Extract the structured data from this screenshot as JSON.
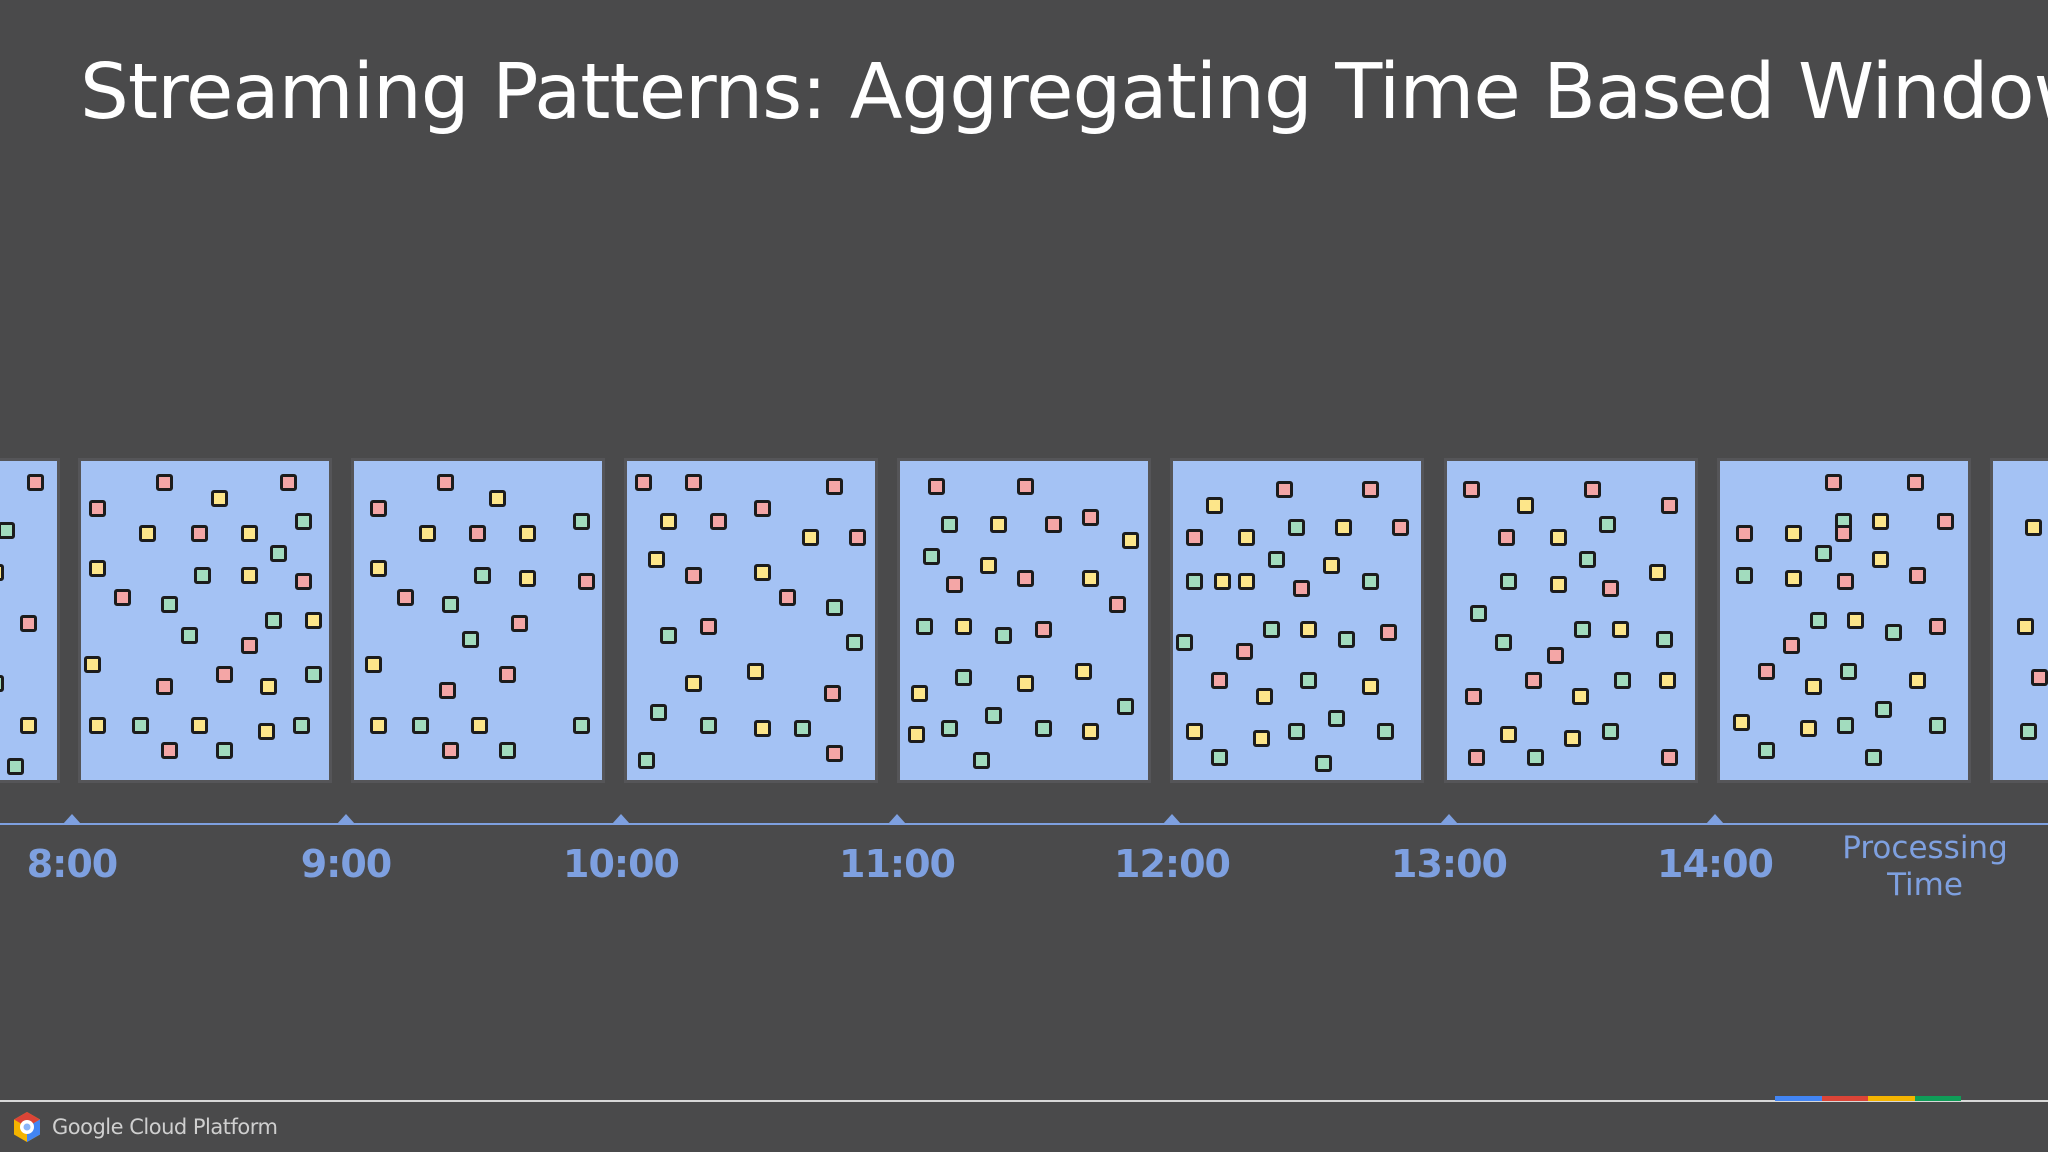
{
  "title": "Streaming Patterns: Aggregating Time Based Windows",
  "axis": {
    "label": "Processing\nTime",
    "ticks": [
      "8:00",
      "9:00",
      "10:00",
      "11:00",
      "12:00",
      "13:00",
      "14:00"
    ]
  },
  "legend_colors": {
    "window_fill": "#a4c2f4",
    "event_red": "#f4a6a6",
    "event_yellow": "#fde68a",
    "event_green": "#a2dcbe",
    "axis": "#7ea0e0"
  },
  "footer": {
    "brand_text": "Google Cloud Platform",
    "brand_colors": [
      "#4285f4",
      "#db4437",
      "#f4b400",
      "#0f9d58"
    ]
  },
  "windows": [
    {
      "id": "partial-left",
      "events": [
        {
          "c": "r",
          "u": 0.72,
          "v": 0.07
        },
        {
          "c": "g",
          "u": 0.32,
          "v": 0.22
        },
        {
          "c": "y",
          "u": 0.18,
          "v": 0.35
        },
        {
          "c": "r",
          "u": 0.62,
          "v": 0.51
        },
        {
          "c": "g",
          "u": 0.18,
          "v": 0.7
        },
        {
          "c": "y",
          "u": 0.62,
          "v": 0.83
        },
        {
          "c": "g",
          "u": 0.45,
          "v": 0.96
        }
      ]
    },
    {
      "id": "window-8",
      "events": [
        {
          "c": "r",
          "u": 0.34,
          "v": 0.07
        },
        {
          "c": "r",
          "u": 0.84,
          "v": 0.07
        },
        {
          "c": "y",
          "u": 0.56,
          "v": 0.12
        },
        {
          "c": "r",
          "u": 0.07,
          "v": 0.15
        },
        {
          "c": "g",
          "u": 0.9,
          "v": 0.19
        },
        {
          "c": "y",
          "u": 0.27,
          "v": 0.23
        },
        {
          "c": "r",
          "u": 0.48,
          "v": 0.23
        },
        {
          "c": "y",
          "u": 0.68,
          "v": 0.23
        },
        {
          "c": "g",
          "u": 0.8,
          "v": 0.29
        },
        {
          "c": "y",
          "u": 0.07,
          "v": 0.34
        },
        {
          "c": "g",
          "u": 0.49,
          "v": 0.36
        },
        {
          "c": "y",
          "u": 0.68,
          "v": 0.36
        },
        {
          "c": "r",
          "u": 0.9,
          "v": 0.38
        },
        {
          "c": "r",
          "u": 0.17,
          "v": 0.43
        },
        {
          "c": "g",
          "u": 0.36,
          "v": 0.45
        },
        {
          "c": "g",
          "u": 0.78,
          "v": 0.5
        },
        {
          "c": "y",
          "u": 0.94,
          "v": 0.5
        },
        {
          "c": "g",
          "u": 0.44,
          "v": 0.55
        },
        {
          "c": "r",
          "u": 0.68,
          "v": 0.58
        },
        {
          "c": "y",
          "u": 0.05,
          "v": 0.64
        },
        {
          "c": "g",
          "u": 0.94,
          "v": 0.67
        },
        {
          "c": "r",
          "u": 0.58,
          "v": 0.67
        },
        {
          "c": "r",
          "u": 0.34,
          "v": 0.71
        },
        {
          "c": "y",
          "u": 0.76,
          "v": 0.71
        },
        {
          "c": "y",
          "u": 0.07,
          "v": 0.83
        },
        {
          "c": "g",
          "u": 0.24,
          "v": 0.83
        },
        {
          "c": "y",
          "u": 0.48,
          "v": 0.83
        },
        {
          "c": "g",
          "u": 0.89,
          "v": 0.83
        },
        {
          "c": "y",
          "u": 0.75,
          "v": 0.85
        },
        {
          "c": "r",
          "u": 0.36,
          "v": 0.91
        },
        {
          "c": "g",
          "u": 0.58,
          "v": 0.91
        }
      ]
    },
    {
      "id": "window-9",
      "events": [
        {
          "c": "r",
          "u": 0.37,
          "v": 0.07
        },
        {
          "c": "y",
          "u": 0.58,
          "v": 0.12
        },
        {
          "c": "r",
          "u": 0.1,
          "v": 0.15
        },
        {
          "c": "g",
          "u": 0.92,
          "v": 0.19
        },
        {
          "c": "y",
          "u": 0.3,
          "v": 0.23
        },
        {
          "c": "r",
          "u": 0.5,
          "v": 0.23
        },
        {
          "c": "y",
          "u": 0.7,
          "v": 0.23
        },
        {
          "c": "y",
          "u": 0.1,
          "v": 0.34
        },
        {
          "c": "g",
          "u": 0.52,
          "v": 0.36
        },
        {
          "c": "y",
          "u": 0.7,
          "v": 0.37
        },
        {
          "c": "r",
          "u": 0.94,
          "v": 0.38
        },
        {
          "c": "r",
          "u": 0.21,
          "v": 0.43
        },
        {
          "c": "g",
          "u": 0.39,
          "v": 0.45
        },
        {
          "c": "r",
          "u": 0.67,
          "v": 0.51
        },
        {
          "c": "g",
          "u": 0.47,
          "v": 0.56
        },
        {
          "c": "y",
          "u": 0.08,
          "v": 0.64
        },
        {
          "c": "r",
          "u": 0.62,
          "v": 0.67
        },
        {
          "c": "r",
          "u": 0.38,
          "v": 0.72
        },
        {
          "c": "y",
          "u": 0.1,
          "v": 0.83
        },
        {
          "c": "g",
          "u": 0.27,
          "v": 0.83
        },
        {
          "c": "y",
          "u": 0.51,
          "v": 0.83
        },
        {
          "c": "g",
          "u": 0.92,
          "v": 0.83
        },
        {
          "c": "r",
          "u": 0.39,
          "v": 0.91
        },
        {
          "c": "g",
          "u": 0.62,
          "v": 0.91
        }
      ]
    },
    {
      "id": "window-10",
      "events": [
        {
          "c": "r",
          "u": 0.07,
          "v": 0.07
        },
        {
          "c": "r",
          "u": 0.27,
          "v": 0.07
        },
        {
          "c": "r",
          "u": 0.84,
          "v": 0.08
        },
        {
          "c": "r",
          "u": 0.55,
          "v": 0.15
        },
        {
          "c": "y",
          "u": 0.17,
          "v": 0.19
        },
        {
          "c": "r",
          "u": 0.37,
          "v": 0.19
        },
        {
          "c": "y",
          "u": 0.74,
          "v": 0.24
        },
        {
          "c": "r",
          "u": 0.93,
          "v": 0.24
        },
        {
          "c": "y",
          "u": 0.12,
          "v": 0.31
        },
        {
          "c": "r",
          "u": 0.27,
          "v": 0.36
        },
        {
          "c": "y",
          "u": 0.55,
          "v": 0.35
        },
        {
          "c": "r",
          "u": 0.65,
          "v": 0.43
        },
        {
          "c": "g",
          "u": 0.84,
          "v": 0.46
        },
        {
          "c": "r",
          "u": 0.33,
          "v": 0.52
        },
        {
          "c": "g",
          "u": 0.17,
          "v": 0.55
        },
        {
          "c": "g",
          "u": 0.92,
          "v": 0.57
        },
        {
          "c": "y",
          "u": 0.52,
          "v": 0.66
        },
        {
          "c": "y",
          "u": 0.27,
          "v": 0.7
        },
        {
          "c": "r",
          "u": 0.83,
          "v": 0.73
        },
        {
          "c": "g",
          "u": 0.13,
          "v": 0.79
        },
        {
          "c": "g",
          "u": 0.33,
          "v": 0.83
        },
        {
          "c": "y",
          "u": 0.55,
          "v": 0.84
        },
        {
          "c": "g",
          "u": 0.71,
          "v": 0.84
        },
        {
          "c": "r",
          "u": 0.84,
          "v": 0.92
        },
        {
          "c": "g",
          "u": 0.08,
          "v": 0.94
        }
      ]
    },
    {
      "id": "window-11",
      "events": [
        {
          "c": "r",
          "u": 0.15,
          "v": 0.08
        },
        {
          "c": "r",
          "u": 0.51,
          "v": 0.08
        },
        {
          "c": "r",
          "u": 0.77,
          "v": 0.18
        },
        {
          "c": "g",
          "u": 0.2,
          "v": 0.2
        },
        {
          "c": "y",
          "u": 0.4,
          "v": 0.2
        },
        {
          "c": "r",
          "u": 0.62,
          "v": 0.2
        },
        {
          "c": "y",
          "u": 0.93,
          "v": 0.25
        },
        {
          "c": "g",
          "u": 0.13,
          "v": 0.3
        },
        {
          "c": "y",
          "u": 0.36,
          "v": 0.33
        },
        {
          "c": "r",
          "u": 0.22,
          "v": 0.39
        },
        {
          "c": "r",
          "u": 0.51,
          "v": 0.37
        },
        {
          "c": "y",
          "u": 0.77,
          "v": 0.37
        },
        {
          "c": "r",
          "u": 0.88,
          "v": 0.45
        },
        {
          "c": "g",
          "u": 0.1,
          "v": 0.52
        },
        {
          "c": "y",
          "u": 0.26,
          "v": 0.52
        },
        {
          "c": "g",
          "u": 0.42,
          "v": 0.55
        },
        {
          "c": "r",
          "u": 0.58,
          "v": 0.53
        },
        {
          "c": "y",
          "u": 0.74,
          "v": 0.66
        },
        {
          "c": "g",
          "u": 0.26,
          "v": 0.68
        },
        {
          "c": "y",
          "u": 0.51,
          "v": 0.7
        },
        {
          "c": "y",
          "u": 0.08,
          "v": 0.73
        },
        {
          "c": "g",
          "u": 0.91,
          "v": 0.77
        },
        {
          "c": "g",
          "u": 0.38,
          "v": 0.8
        },
        {
          "c": "g",
          "u": 0.2,
          "v": 0.84
        },
        {
          "c": "g",
          "u": 0.58,
          "v": 0.84
        },
        {
          "c": "y",
          "u": 0.77,
          "v": 0.85
        },
        {
          "c": "y",
          "u": 0.07,
          "v": 0.86
        },
        {
          "c": "g",
          "u": 0.33,
          "v": 0.94
        }
      ]
    },
    {
      "id": "window-12",
      "events": [
        {
          "c": "r",
          "u": 0.45,
          "v": 0.09
        },
        {
          "c": "r",
          "u": 0.8,
          "v": 0.09
        },
        {
          "c": "y",
          "u": 0.17,
          "v": 0.14
        },
        {
          "c": "r",
          "u": 0.92,
          "v": 0.21
        },
        {
          "c": "g",
          "u": 0.5,
          "v": 0.21
        },
        {
          "c": "y",
          "u": 0.69,
          "v": 0.21
        },
        {
          "c": "r",
          "u": 0.09,
          "v": 0.24
        },
        {
          "c": "y",
          "u": 0.3,
          "v": 0.24
        },
        {
          "c": "g",
          "u": 0.42,
          "v": 0.31
        },
        {
          "c": "y",
          "u": 0.64,
          "v": 0.33
        },
        {
          "c": "g",
          "u": 0.09,
          "v": 0.38
        },
        {
          "c": "y",
          "u": 0.3,
          "v": 0.38
        },
        {
          "c": "r",
          "u": 0.52,
          "v": 0.4
        },
        {
          "c": "g",
          "u": 0.8,
          "v": 0.38
        },
        {
          "c": "y",
          "u": 0.2,
          "v": 0.38
        },
        {
          "c": "g",
          "u": 0.4,
          "v": 0.53
        },
        {
          "c": "y",
          "u": 0.55,
          "v": 0.53
        },
        {
          "c": "g",
          "u": 0.7,
          "v": 0.56
        },
        {
          "c": "r",
          "u": 0.87,
          "v": 0.54
        },
        {
          "c": "g",
          "u": 0.05,
          "v": 0.57
        },
        {
          "c": "r",
          "u": 0.29,
          "v": 0.6
        },
        {
          "c": "r",
          "u": 0.19,
          "v": 0.69
        },
        {
          "c": "g",
          "u": 0.55,
          "v": 0.69
        },
        {
          "c": "y",
          "u": 0.8,
          "v": 0.71
        },
        {
          "c": "y",
          "u": 0.37,
          "v": 0.74
        },
        {
          "c": "g",
          "u": 0.66,
          "v": 0.81
        },
        {
          "c": "y",
          "u": 0.09,
          "v": 0.85
        },
        {
          "c": "y",
          "u": 0.36,
          "v": 0.87
        },
        {
          "c": "g",
          "u": 0.5,
          "v": 0.85
        },
        {
          "c": "g",
          "u": 0.86,
          "v": 0.85
        },
        {
          "c": "g",
          "u": 0.19,
          "v": 0.93
        },
        {
          "c": "g",
          "u": 0.61,
          "v": 0.95
        }
      ]
    },
    {
      "id": "window-13",
      "events": [
        {
          "c": "r",
          "u": 0.1,
          "v": 0.09
        },
        {
          "c": "r",
          "u": 0.59,
          "v": 0.09
        },
        {
          "c": "y",
          "u": 0.32,
          "v": 0.14
        },
        {
          "c": "r",
          "u": 0.9,
          "v": 0.14
        },
        {
          "c": "g",
          "u": 0.65,
          "v": 0.2
        },
        {
          "c": "r",
          "u": 0.24,
          "v": 0.24
        },
        {
          "c": "y",
          "u": 0.45,
          "v": 0.24
        },
        {
          "c": "g",
          "u": 0.57,
          "v": 0.31
        },
        {
          "c": "y",
          "u": 0.85,
          "v": 0.35
        },
        {
          "c": "g",
          "u": 0.25,
          "v": 0.38
        },
        {
          "c": "y",
          "u": 0.45,
          "v": 0.39
        },
        {
          "c": "r",
          "u": 0.66,
          "v": 0.4
        },
        {
          "c": "g",
          "u": 0.13,
          "v": 0.48
        },
        {
          "c": "g",
          "u": 0.55,
          "v": 0.53
        },
        {
          "c": "y",
          "u": 0.7,
          "v": 0.53
        },
        {
          "c": "g",
          "u": 0.88,
          "v": 0.56
        },
        {
          "c": "g",
          "u": 0.23,
          "v": 0.57
        },
        {
          "c": "r",
          "u": 0.44,
          "v": 0.61
        },
        {
          "c": "r",
          "u": 0.35,
          "v": 0.69
        },
        {
          "c": "g",
          "u": 0.71,
          "v": 0.69
        },
        {
          "c": "y",
          "u": 0.89,
          "v": 0.69
        },
        {
          "c": "y",
          "u": 0.54,
          "v": 0.74
        },
        {
          "c": "r",
          "u": 0.11,
          "v": 0.74
        },
        {
          "c": "y",
          "u": 0.25,
          "v": 0.86
        },
        {
          "c": "y",
          "u": 0.51,
          "v": 0.87
        },
        {
          "c": "g",
          "u": 0.66,
          "v": 0.85
        },
        {
          "c": "r",
          "u": 0.12,
          "v": 0.93
        },
        {
          "c": "g",
          "u": 0.36,
          "v": 0.93
        },
        {
          "c": "r",
          "u": 0.9,
          "v": 0.93
        }
      ]
    },
    {
      "id": "window-14",
      "events": [
        {
          "c": "r",
          "u": 0.46,
          "v": 0.07
        },
        {
          "c": "r",
          "u": 0.79,
          "v": 0.07
        },
        {
          "c": "g",
          "u": 0.5,
          "v": 0.19
        },
        {
          "c": "y",
          "u": 0.65,
          "v": 0.19
        },
        {
          "c": "r",
          "u": 0.91,
          "v": 0.19
        },
        {
          "c": "r",
          "u": 0.1,
          "v": 0.23
        },
        {
          "c": "y",
          "u": 0.3,
          "v": 0.23
        },
        {
          "c": "r",
          "u": 0.5,
          "v": 0.23
        },
        {
          "c": "g",
          "u": 0.42,
          "v": 0.29
        },
        {
          "c": "y",
          "u": 0.65,
          "v": 0.31
        },
        {
          "c": "g",
          "u": 0.1,
          "v": 0.36
        },
        {
          "c": "y",
          "u": 0.3,
          "v": 0.37
        },
        {
          "c": "r",
          "u": 0.51,
          "v": 0.38
        },
        {
          "c": "r",
          "u": 0.8,
          "v": 0.36
        },
        {
          "c": "g",
          "u": 0.4,
          "v": 0.5
        },
        {
          "c": "y",
          "u": 0.55,
          "v": 0.5
        },
        {
          "c": "g",
          "u": 0.7,
          "v": 0.54
        },
        {
          "c": "r",
          "u": 0.88,
          "v": 0.52
        },
        {
          "c": "r",
          "u": 0.29,
          "v": 0.58
        },
        {
          "c": "r",
          "u": 0.19,
          "v": 0.66
        },
        {
          "c": "g",
          "u": 0.52,
          "v": 0.66
        },
        {
          "c": "y",
          "u": 0.8,
          "v": 0.69
        },
        {
          "c": "y",
          "u": 0.38,
          "v": 0.71
        },
        {
          "c": "g",
          "u": 0.66,
          "v": 0.78
        },
        {
          "c": "y",
          "u": 0.09,
          "v": 0.82
        },
        {
          "c": "y",
          "u": 0.36,
          "v": 0.84
        },
        {
          "c": "g",
          "u": 0.51,
          "v": 0.83
        },
        {
          "c": "g",
          "u": 0.88,
          "v": 0.83
        },
        {
          "c": "g",
          "u": 0.19,
          "v": 0.91
        },
        {
          "c": "g",
          "u": 0.62,
          "v": 0.93
        }
      ]
    },
    {
      "id": "partial-right",
      "events": [
        {
          "c": "y",
          "u": 0.55,
          "v": 0.21
        },
        {
          "c": "y",
          "u": 0.45,
          "v": 0.52
        },
        {
          "c": "r",
          "u": 0.63,
          "v": 0.68
        },
        {
          "c": "g",
          "u": 0.48,
          "v": 0.85
        }
      ]
    }
  ]
}
